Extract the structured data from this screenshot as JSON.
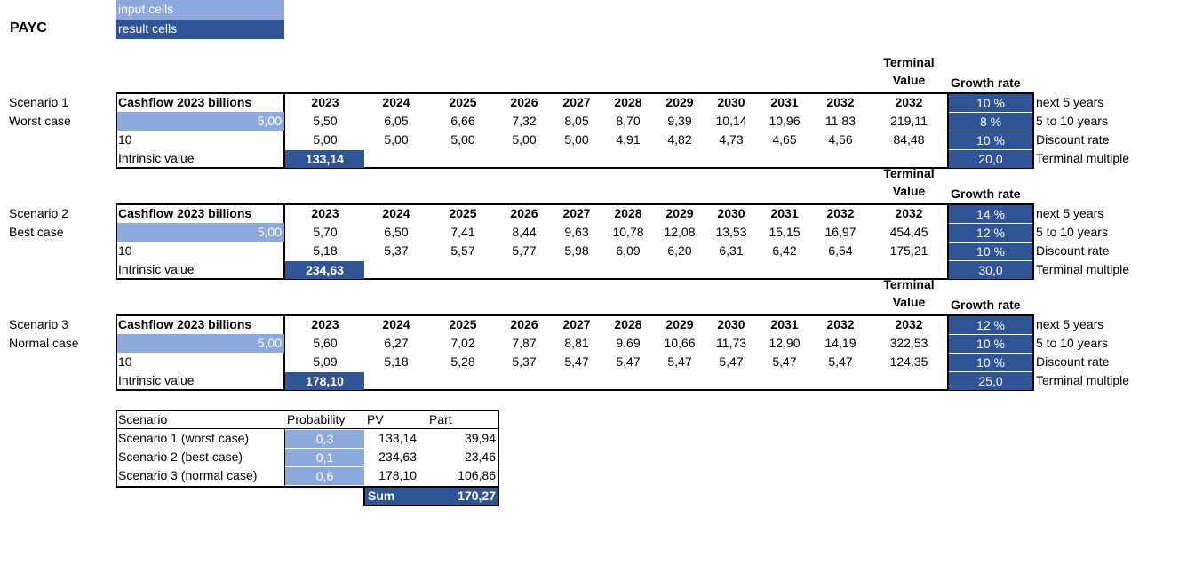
{
  "company": "PAYC",
  "legend": {
    "input": "input cells",
    "result": "result cells"
  },
  "years": [
    "2023",
    "2024",
    "2025",
    "2026",
    "2027",
    "2028",
    "2029",
    "2030",
    "2031",
    "2032"
  ],
  "terminal_header": [
    "Terminal",
    "Value",
    "2032"
  ],
  "growth_header": "Growth rate",
  "cashflow_label": "Cashflow 2023 billions",
  "intrinsic_label": "Intrinsic value",
  "param_labels": [
    "next 5 years",
    "5 to 10 years",
    "Discount rate",
    "Terminal multiple"
  ],
  "scenarios": [
    {
      "name": "Scenario 1",
      "case": "Worst case",
      "input": "5,00",
      "years_count": "10",
      "cashflows": [
        "5,50",
        "6,05",
        "6,66",
        "7,32",
        "8,05",
        "8,70",
        "9,39",
        "10,14",
        "10,96",
        "11,83"
      ],
      "terminal": "219,11",
      "discounted": [
        "5,00",
        "5,00",
        "5,00",
        "5,00",
        "5,00",
        "4,91",
        "4,82",
        "4,73",
        "4,65",
        "4,56"
      ],
      "terminal_pv": "84,48",
      "intrinsic": "133,14",
      "params": [
        "10 %",
        "8 %",
        "10 %",
        "20,0"
      ]
    },
    {
      "name": "Scenario 2",
      "case": "Best case",
      "input": "5,00",
      "years_count": "10",
      "cashflows": [
        "5,70",
        "6,50",
        "7,41",
        "8,44",
        "9,63",
        "10,78",
        "12,08",
        "13,53",
        "15,15",
        "16,97"
      ],
      "terminal": "454,45",
      "discounted": [
        "5,18",
        "5,37",
        "5,57",
        "5,77",
        "5,98",
        "6,09",
        "6,20",
        "6,31",
        "6,42",
        "6,54"
      ],
      "terminal_pv": "175,21",
      "intrinsic": "234,63",
      "params": [
        "14 %",
        "12 %",
        "10 %",
        "30,0"
      ]
    },
    {
      "name": "Scenario 3",
      "case": "Normal case",
      "input": "5,00",
      "years_count": "10",
      "cashflows": [
        "5,60",
        "6,27",
        "7,02",
        "7,87",
        "8,81",
        "9,69",
        "10,66",
        "11,73",
        "12,90",
        "14,19"
      ],
      "terminal": "322,53",
      "discounted": [
        "5,09",
        "5,18",
        "5,28",
        "5,37",
        "5,47",
        "5,47",
        "5,47",
        "5,47",
        "5,47",
        "5,47"
      ],
      "terminal_pv": "124,35",
      "intrinsic": "178,10",
      "params": [
        "12 %",
        "10 %",
        "10 %",
        "25,0"
      ]
    }
  ],
  "summary": {
    "headers": [
      "Scenario",
      "Probability",
      "PV",
      "Part"
    ],
    "rows": [
      {
        "scenario": "Scenario 1 (worst case)",
        "prob": "0,3",
        "pv": "133,14",
        "part": "39,94"
      },
      {
        "scenario": "Scenario 2 (best case)",
        "prob": "0,1",
        "pv": "234,63",
        "part": "23,46"
      },
      {
        "scenario": "Scenario 3 (normal case)",
        "prob": "0,6",
        "pv": "178,10",
        "part": "106,86"
      }
    ],
    "sum_label": "Sum",
    "sum_value": "170,27"
  }
}
